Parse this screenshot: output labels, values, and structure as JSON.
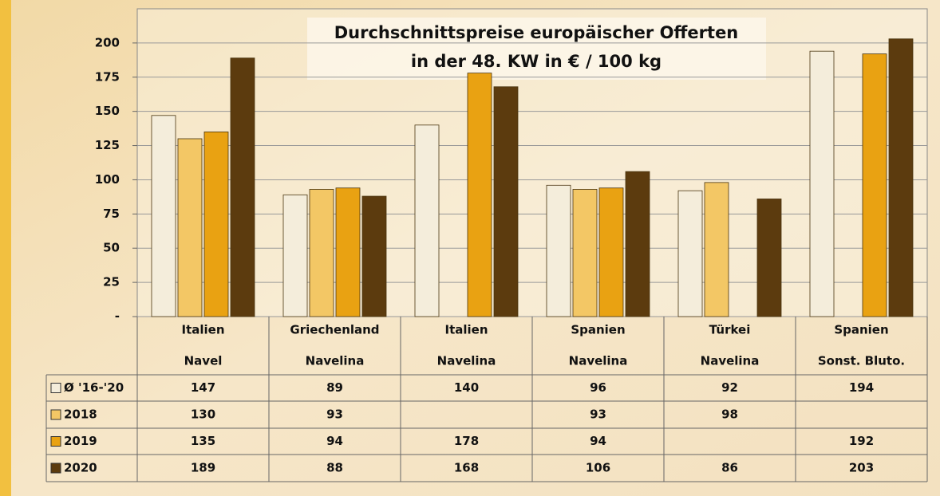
{
  "chart_data": {
    "type": "bar",
    "title": "Durchschnittspreise europäischer Offerten",
    "subtitle": "in der 48. KW in € / 100 kg",
    "categories": [
      [
        "Italien",
        "Navel"
      ],
      [
        "Griechenland",
        "Navelina"
      ],
      [
        "Italien",
        "Navelina"
      ],
      [
        "Spanien",
        "Navelina"
      ],
      [
        "Türkei",
        "Navelina"
      ],
      [
        "Spanien",
        "Sonst. Bluto."
      ]
    ],
    "series": [
      {
        "name": "Ø '16-'20",
        "color": "#f4eddb",
        "values": [
          147,
          89,
          140,
          96,
          92,
          194
        ]
      },
      {
        "name": "2018",
        "color": "#f3c765",
        "values": [
          130,
          93,
          null,
          93,
          98,
          null
        ]
      },
      {
        "name": "2019",
        "color": "#e9a212",
        "values": [
          135,
          94,
          178,
          94,
          null,
          192
        ]
      },
      {
        "name": "2020",
        "color": "#5c3b0e",
        "values": [
          189,
          88,
          168,
          106,
          86,
          203
        ]
      }
    ],
    "ylim": [
      0,
      225
    ],
    "yticks": [
      {
        "value": 0,
        "label": "-"
      },
      25,
      50,
      75,
      100,
      125,
      150,
      175,
      200
    ],
    "grid": true
  }
}
